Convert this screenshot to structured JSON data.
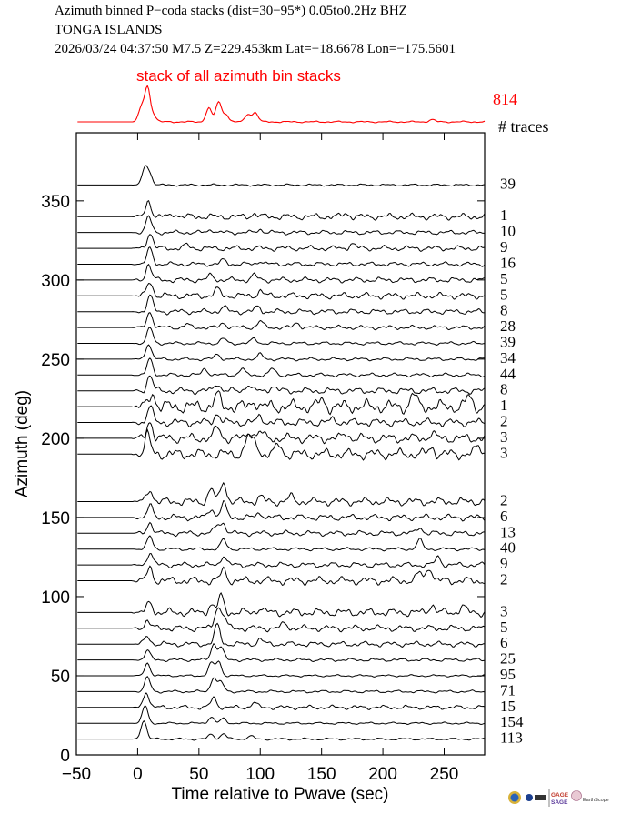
{
  "header": {
    "line1": "Azimuth binned P−coda stacks (dist=30−95*)  0.05to0.2Hz  BHZ",
    "line2": "TONGA ISLANDS",
    "line3": "2026/03/24  04:37:50  M7.5  Z=229.453km Lat=−18.6678 Lon=−175.5601"
  },
  "logos": [
    "GAGE",
    "SAGE",
    "EarthScope"
  ],
  "chart_data": {
    "type": "line",
    "title": "Azimuth binned P-coda stacks",
    "xlabel": "Time relative to Pwave (sec)",
    "ylabel": "Azimuth (deg)",
    "xlim": [
      -50,
      283
    ],
    "ylim": [
      0,
      393
    ],
    "xticks": [
      "−50",
      "0",
      "50",
      "100",
      "150",
      "200",
      "250"
    ],
    "xtick_values": [
      -50,
      0,
      50,
      100,
      150,
      200,
      250
    ],
    "yticks": [
      "0",
      "50",
      "100",
      "150",
      "200",
      "250",
      "300",
      "350"
    ],
    "ytick_values": [
      0,
      50,
      100,
      150,
      200,
      250,
      300,
      350
    ],
    "stack": {
      "label": "stack of all azimuth bin stacks",
      "count": "814",
      "color": "#ff0000",
      "peaks": [
        [
          3,
          0.9
        ],
        [
          8,
          2.2
        ],
        [
          13,
          0.4
        ],
        [
          58,
          0.9
        ],
        [
          66,
          1.3
        ],
        [
          72,
          0.5
        ],
        [
          90,
          0.5
        ],
        [
          96,
          0.6
        ],
        [
          240,
          0.15
        ]
      ]
    },
    "count_header": "# traces",
    "trace_color": "#000000",
    "series": [
      {
        "azimuth": 360,
        "count": "39",
        "peaks": [
          [
            6,
            1.1
          ],
          [
            10,
            0.6
          ]
        ],
        "noise": 0.04
      },
      {
        "azimuth": 340,
        "count": "1",
        "peaks": [
          [
            9,
            1.0
          ],
          [
            30,
            0.2
          ],
          [
            95,
            0.2
          ],
          [
            170,
            0.2
          ]
        ],
        "noise": 0.12
      },
      {
        "azimuth": 330,
        "count": "10",
        "peaks": [
          [
            9,
            1.0
          ],
          [
            60,
            0.2
          ],
          [
            100,
            0.2
          ]
        ],
        "noise": 0.08
      },
      {
        "azimuth": 320,
        "count": "9",
        "peaks": [
          [
            10,
            1.0
          ],
          [
            40,
            0.2
          ],
          [
            175,
            0.3
          ]
        ],
        "noise": 0.1
      },
      {
        "azimuth": 310,
        "count": "16",
        "peaks": [
          [
            10,
            1.0
          ],
          [
            70,
            0.25
          ],
          [
            100,
            0.2
          ]
        ],
        "noise": 0.08
      },
      {
        "azimuth": 300,
        "count": "5",
        "peaks": [
          [
            9,
            1.0
          ],
          [
            60,
            0.3
          ],
          [
            95,
            0.3
          ]
        ],
        "noise": 0.1
      },
      {
        "azimuth": 290,
        "count": "5",
        "peaks": [
          [
            10,
            0.9
          ],
          [
            65,
            0.4
          ],
          [
            100,
            0.3
          ]
        ],
        "noise": 0.12
      },
      {
        "azimuth": 280,
        "count": "8",
        "peaks": [
          [
            10,
            1.0
          ],
          [
            70,
            0.3
          ],
          [
            98,
            0.3
          ]
        ],
        "noise": 0.1
      },
      {
        "azimuth": 270,
        "count": "28",
        "peaks": [
          [
            10,
            1.0
          ],
          [
            40,
            0.2
          ],
          [
            70,
            0.3
          ],
          [
            100,
            0.4
          ],
          [
            130,
            0.3
          ]
        ],
        "noise": 0.08
      },
      {
        "azimuth": 260,
        "count": "39",
        "peaks": [
          [
            10,
            1.0
          ],
          [
            70,
            0.3
          ],
          [
            95,
            0.3
          ]
        ],
        "noise": 0.06
      },
      {
        "azimuth": 250,
        "count": "34",
        "peaks": [
          [
            9,
            1.0
          ],
          [
            65,
            0.3
          ],
          [
            100,
            0.3
          ]
        ],
        "noise": 0.06
      },
      {
        "azimuth": 240,
        "count": "44",
        "peaks": [
          [
            10,
            1.0
          ],
          [
            55,
            0.4
          ],
          [
            85,
            0.4
          ],
          [
            110,
            0.4
          ]
        ],
        "noise": 0.07
      },
      {
        "azimuth": 230,
        "count": "8",
        "peaks": [
          [
            10,
            1.0
          ],
          [
            65,
            0.5
          ],
          [
            90,
            0.4
          ],
          [
            110,
            0.3
          ]
        ],
        "noise": 0.12
      },
      {
        "azimuth": 220,
        "count": "1",
        "peaks": [
          [
            12,
            0.9
          ],
          [
            65,
            0.7
          ],
          [
            95,
            0.4
          ],
          [
            150,
            0.4
          ],
          [
            225,
            0.8
          ],
          [
            270,
            0.6
          ]
        ],
        "noise": 0.25
      },
      {
        "azimuth": 210,
        "count": "2",
        "peaks": [
          [
            10,
            1.0
          ],
          [
            65,
            0.6
          ],
          [
            100,
            0.4
          ],
          [
            160,
            0.2
          ]
        ],
        "noise": 0.15
      },
      {
        "azimuth": 200,
        "count": "3",
        "peaks": [
          [
            10,
            1.1
          ],
          [
            65,
            0.7
          ],
          [
            92,
            0.5
          ],
          [
            100,
            0.4
          ],
          [
            170,
            0.3
          ],
          [
            240,
            0.3
          ]
        ],
        "noise": 0.18
      },
      {
        "azimuth": 190,
        "count": "3",
        "peaks": [
          [
            8,
            1.2
          ],
          [
            90,
            1.1
          ],
          [
            96,
            0.8
          ],
          [
            115,
            0.6
          ],
          [
            240,
            0.4
          ],
          [
            278,
            0.5
          ]
        ],
        "noise": 0.2
      },
      {
        "azimuth": 160,
        "count": "2",
        "peaks": [
          [
            10,
            0.8
          ],
          [
            60,
            0.8
          ],
          [
            70,
            1.3
          ],
          [
            100,
            0.3
          ],
          [
            125,
            0.3
          ]
        ],
        "noise": 0.15
      },
      {
        "azimuth": 150,
        "count": "6",
        "peaks": [
          [
            10,
            0.7
          ],
          [
            60,
            0.6
          ],
          [
            70,
            0.9
          ],
          [
            100,
            0.3
          ]
        ],
        "noise": 0.12
      },
      {
        "azimuth": 140,
        "count": "13",
        "peaks": [
          [
            10,
            0.7
          ],
          [
            65,
            0.5
          ],
          [
            70,
            0.6
          ],
          [
            230,
            0.4
          ]
        ],
        "noise": 0.1
      },
      {
        "azimuth": 130,
        "count": "40",
        "peaks": [
          [
            10,
            0.8
          ],
          [
            70,
            0.6
          ],
          [
            230,
            0.6
          ]
        ],
        "noise": 0.06
      },
      {
        "azimuth": 120,
        "count": "9",
        "peaks": [
          [
            10,
            0.8
          ],
          [
            70,
            0.6
          ],
          [
            245,
            0.5
          ]
        ],
        "noise": 0.1
      },
      {
        "azimuth": 110,
        "count": "2",
        "peaks": [
          [
            10,
            0.8
          ],
          [
            70,
            0.7
          ],
          [
            230,
            0.5
          ],
          [
            238,
            0.9
          ]
        ],
        "noise": 0.15
      },
      {
        "azimuth": 90,
        "count": "3",
        "peaks": [
          [
            10,
            0.6
          ],
          [
            60,
            0.5
          ],
          [
            68,
            1.0
          ],
          [
            100,
            0.3
          ],
          [
            240,
            0.5
          ],
          [
            265,
            0.4
          ]
        ],
        "noise": 0.15
      },
      {
        "azimuth": 80,
        "count": "5",
        "peaks": [
          [
            8,
            0.5
          ],
          [
            65,
            1.3
          ],
          [
            70,
            0.8
          ],
          [
            120,
            0.3
          ]
        ],
        "noise": 0.12
      },
      {
        "azimuth": 70,
        "count": "6",
        "peaks": [
          [
            8,
            0.5
          ],
          [
            65,
            1.2
          ],
          [
            100,
            0.3
          ]
        ],
        "noise": 0.1
      },
      {
        "azimuth": 60,
        "count": "25",
        "peaks": [
          [
            8,
            0.6
          ],
          [
            62,
            1.0
          ],
          [
            68,
            0.8
          ]
        ],
        "noise": 0.06
      },
      {
        "azimuth": 50,
        "count": "95",
        "peaks": [
          [
            8,
            0.8
          ],
          [
            60,
            0.8
          ],
          [
            66,
            0.9
          ]
        ],
        "noise": 0.04
      },
      {
        "azimuth": 40,
        "count": "71",
        "peaks": [
          [
            8,
            0.9
          ],
          [
            62,
            0.9
          ],
          [
            68,
            0.6
          ]
        ],
        "noise": 0.05
      },
      {
        "azimuth": 30,
        "count": "15",
        "peaks": [
          [
            7,
            1.0
          ],
          [
            62,
            0.6
          ],
          [
            95,
            0.3
          ]
        ],
        "noise": 0.08
      },
      {
        "azimuth": 20,
        "count": "154",
        "peaks": [
          [
            6,
            1.1
          ],
          [
            60,
            0.4
          ],
          [
            70,
            0.3
          ]
        ],
        "noise": 0.04
      },
      {
        "azimuth": 10,
        "count": "113",
        "peaks": [
          [
            5,
            1.2
          ],
          [
            60,
            0.3
          ],
          [
            70,
            0.35
          ],
          [
            92,
            0.2
          ]
        ],
        "noise": 0.04
      }
    ]
  }
}
